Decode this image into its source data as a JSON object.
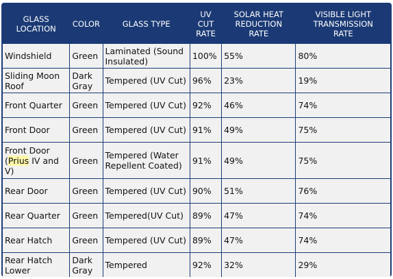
{
  "headers": [
    [
      "GLASS",
      "LOCATION"
    ],
    [
      "COLOR"
    ],
    [
      "GLASS TYPE"
    ],
    [
      "UV",
      "CUT",
      "RATE"
    ],
    [
      "SOLAR HEAT",
      "REDUCTION",
      "RATE"
    ],
    [
      "VISIBLE LIGHT",
      "TRANSMISSION",
      "RATE"
    ]
  ],
  "rows": [
    {
      "location": "Windshield",
      "color": "Green",
      "type": "Laminated (Sound Insulated)",
      "uv": "100%",
      "solar": "55%",
      "visible": "80%"
    },
    {
      "location": "Sliding Moon Roof",
      "color": "Dark Gray",
      "type": "Tempered (UV Cut)",
      "uv": "96%",
      "solar": "23%",
      "visible": "19%"
    },
    {
      "location": "Front Quarter",
      "color": "Green",
      "type": "Tempered (UV Cut)",
      "uv": "92%",
      "solar": "46%",
      "visible": "74%"
    },
    {
      "location": "Front Door",
      "color": "Green",
      "type": "Tempered (UV Cut)",
      "uv": "91%",
      "solar": "49%",
      "visible": "75%"
    },
    {
      "location_pre": "Front Door (",
      "location_hl": "Prius",
      "location_post": " IV and V)",
      "color": "Green",
      "type": "Tempered (Water Repellent Coated)",
      "uv": "91%",
      "solar": "49%",
      "visible": "75%"
    },
    {
      "location": "Rear Door",
      "color": "Green",
      "type": "Tempered (UV Cut)",
      "uv": "90%",
      "solar": "51%",
      "visible": "76%"
    },
    {
      "location": "Rear Quarter",
      "color": "Green",
      "type": "Tempered(UV Cut)",
      "uv": "89%",
      "solar": "47%",
      "visible": "74%"
    },
    {
      "location": "Rear Hatch",
      "color": "Green",
      "type": "Tempered (UV Cut)",
      "uv": "89%",
      "solar": "47%",
      "visible": "74%"
    },
    {
      "location": "Rear Hatch Lower",
      "color": "Dark Gray",
      "type": "Tempered",
      "uv": "92%",
      "solar": "32%",
      "visible": "29%"
    }
  ],
  "colors": {
    "header_bg": "#1b3a75",
    "cell_bg": "#f1f1f1",
    "highlight": "#fdf7a8"
  }
}
